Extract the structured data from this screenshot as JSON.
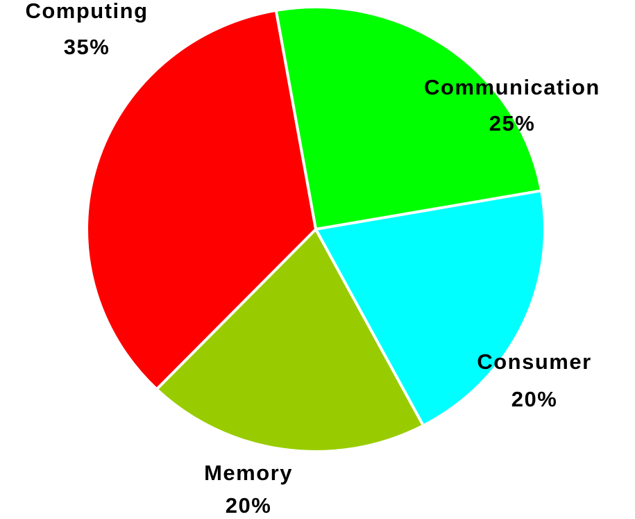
{
  "chart_data": {
    "type": "pie",
    "categories": [
      "Communication",
      "Consumer",
      "Memory",
      "Computing"
    ],
    "values": [
      25,
      20,
      20,
      35
    ],
    "value_labels": [
      "25%",
      "20%",
      "20%",
      "35%"
    ],
    "colors": [
      "#00ff00",
      "#00ffff",
      "#99cc00",
      "#ff0000"
    ]
  }
}
